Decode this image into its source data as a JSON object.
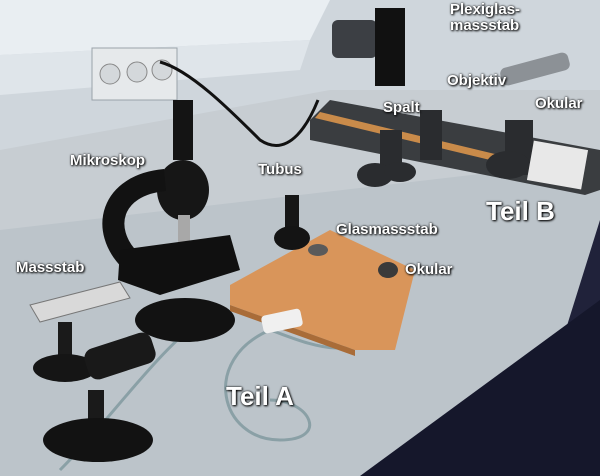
{
  "labels": {
    "mikroskop": "Mikroskop",
    "tubus": "Tubus",
    "glasmassstab": "Glasmassstab",
    "massstab": "Massstab",
    "okular_a": "Okular",
    "teil_a": "Teil A",
    "plexiglas": "Plexiglas-\nmassstab",
    "objektiv": "Objektiv",
    "spalt": "Spalt",
    "okular_b": "Okular",
    "teil_b": "Teil B"
  }
}
